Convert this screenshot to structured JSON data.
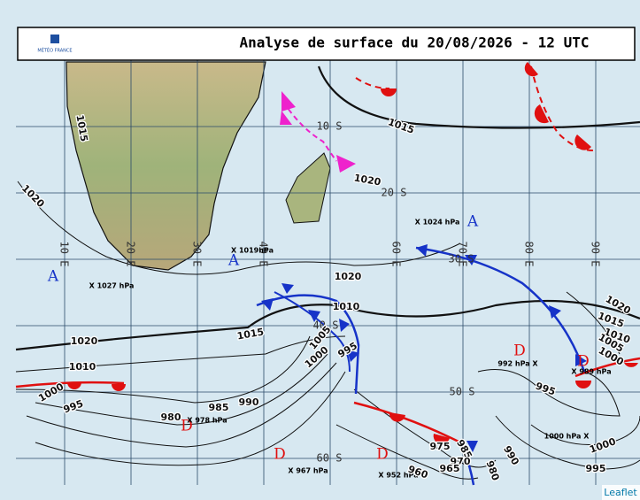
{
  "header": {
    "logo": "MÉTÉO FRANCE",
    "title": "Analyse de surface du 20/08/2026 - 12 UTC"
  },
  "grid": {
    "latitudes": [
      "10 S",
      "20 S",
      "30 S",
      "40 S",
      "50 S",
      "60 S"
    ],
    "longitudes": [
      "10 E",
      "20 E",
      "30 E",
      "40 E",
      "60 E",
      "70 E",
      "80 E",
      "90 E"
    ]
  },
  "centers": [
    {
      "symbol": "A",
      "label": "X 1024 hPa"
    },
    {
      "symbol": "A",
      "label": "X 1019hPa"
    },
    {
      "symbol": "A",
      "label": "X 1027 hPa"
    },
    {
      "symbol": "D",
      "label": "992 hPa X"
    },
    {
      "symbol": "D",
      "label": "X 989 hPa"
    },
    {
      "symbol": "D",
      "label": "X 978 hPa"
    },
    {
      "symbol": "D",
      "label": "X 967 hPa"
    },
    {
      "symbol": "D",
      "label": "X 952 hPa"
    },
    {
      "label": "1000 hPa X"
    }
  ],
  "isobar_labels": [
    "1015",
    "1020",
    "1015",
    "1020",
    "1020",
    "1010",
    "1015",
    "1020",
    "1010",
    "1000",
    "995",
    "1005",
    "1000",
    "995",
    "985",
    "990",
    "980",
    "975",
    "985",
    "970",
    "965",
    "960",
    "990",
    "980",
    "995",
    "1000",
    "995",
    "1020",
    "1015",
    "1010",
    "1005",
    "1000"
  ],
  "attribution": "Leaflet"
}
